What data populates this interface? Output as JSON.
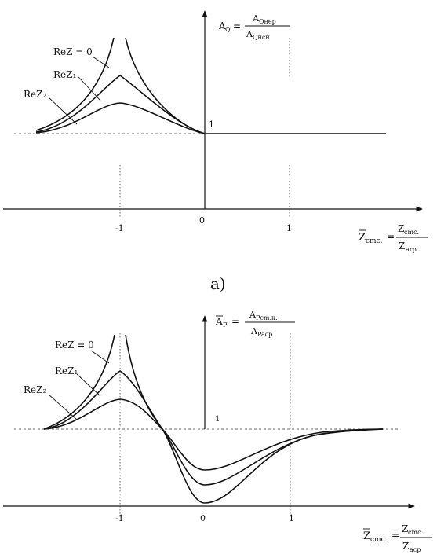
{
  "panel_a": {
    "caption": "a)",
    "y_label_lhs": "A",
    "y_label_sub": "Q",
    "y_label_eq": "=",
    "y_frac_num": "A",
    "y_frac_num_sub": "Qнер",
    "y_frac_den": "A",
    "y_frac_den_sub": "Qнсн",
    "one_label": "1",
    "tick_m1": "-1",
    "tick_0": "0",
    "tick_1": "1",
    "x_label_lhs": "Z",
    "x_label_lhs_sub": "cmc.",
    "x_label_eq": "=",
    "x_frac_num": "Z",
    "x_frac_num_sub": "cmc.",
    "x_frac_den": "Z",
    "x_frac_den_sub": "arp",
    "curve_labels": [
      "ReZ = 0",
      "ReZ₁",
      "ReZ₂"
    ]
  },
  "panel_b": {
    "y_label_lhs": "A",
    "y_label_sub": "P",
    "y_label_eq": "=",
    "y_frac_num": "A",
    "y_frac_num_sub": "Pcm.к.",
    "y_frac_den": "A",
    "y_frac_den_sub": "Pacp",
    "one_label": "1",
    "tick_m1": "-1",
    "tick_0": "0",
    "tick_1": "1",
    "x_label_lhs": "Z",
    "x_label_lhs_sub": "cmc.",
    "x_label_eq": "=",
    "x_frac_num": "Z",
    "x_frac_num_sub": "cmc.",
    "x_frac_den": "Z",
    "x_frac_den_sub": "acp",
    "curve_labels": [
      "ReZ = 0",
      "ReZ₁",
      "ReZ₂"
    ]
  }
}
